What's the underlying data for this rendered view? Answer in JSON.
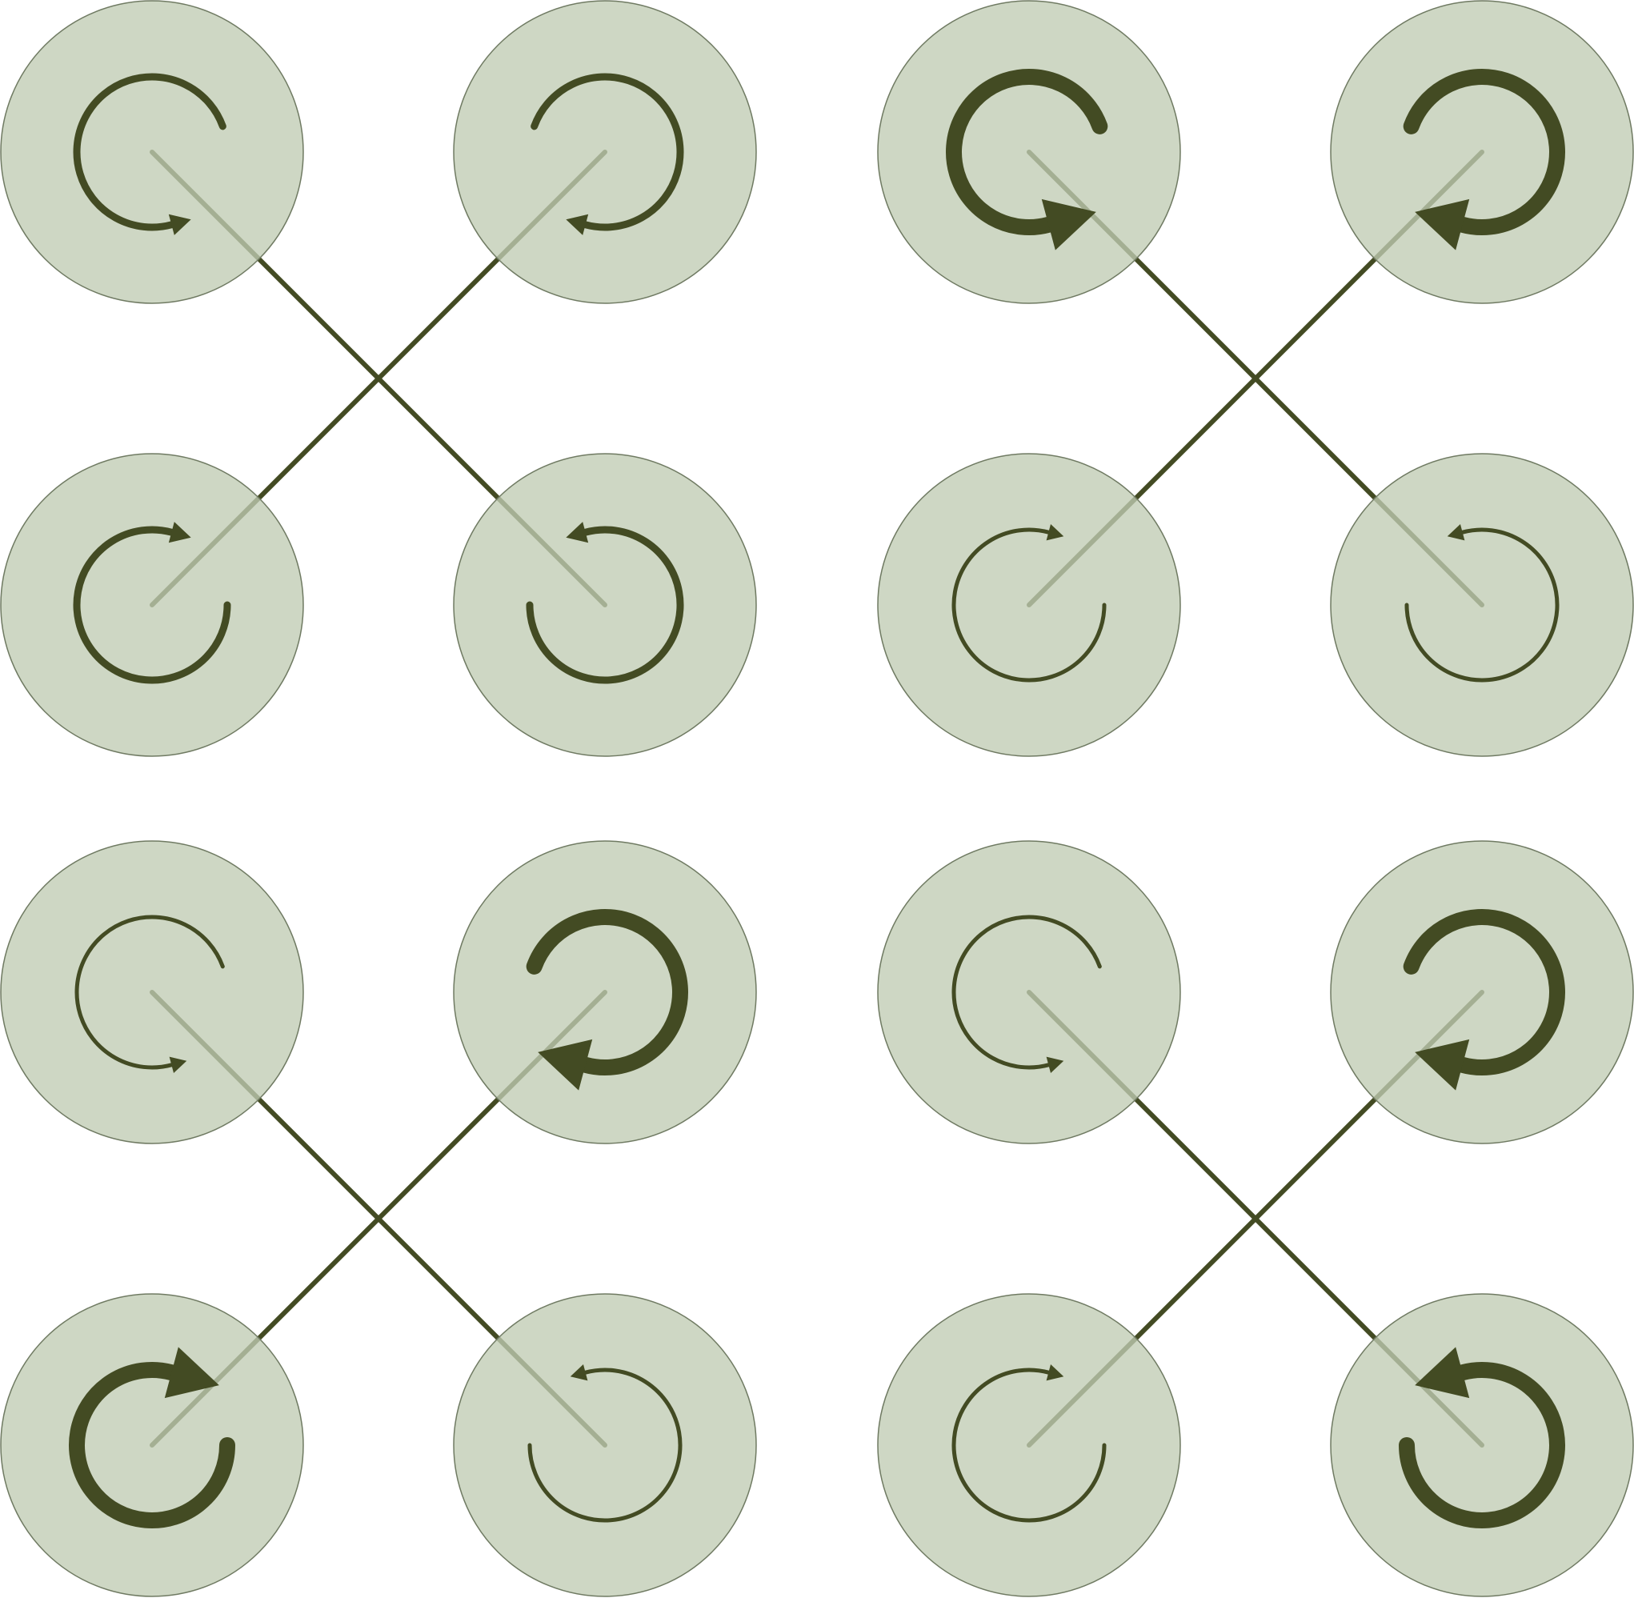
{
  "colors": {
    "background": "#ffffff",
    "disk_fill": "#c0ccb4",
    "disk_stroke": "#6f7a62",
    "arrow": "#434b23",
    "rod": "#434b23"
  },
  "panels": [
    {
      "name": "panel-top-left",
      "disks": [
        {
          "position": "top-left",
          "rotation": "counterclockwise",
          "emphasis": "medium"
        },
        {
          "position": "top-right",
          "rotation": "clockwise",
          "emphasis": "medium"
        },
        {
          "position": "bottom-left",
          "rotation": "clockwise",
          "emphasis": "medium"
        },
        {
          "position": "bottom-right",
          "rotation": "counterclockwise",
          "emphasis": "medium"
        }
      ]
    },
    {
      "name": "panel-top-right",
      "disks": [
        {
          "position": "top-left",
          "rotation": "counterclockwise",
          "emphasis": "strong"
        },
        {
          "position": "top-right",
          "rotation": "clockwise",
          "emphasis": "strong"
        },
        {
          "position": "bottom-left",
          "rotation": "clockwise",
          "emphasis": "weak"
        },
        {
          "position": "bottom-right",
          "rotation": "counterclockwise",
          "emphasis": "weak"
        }
      ]
    },
    {
      "name": "panel-bottom-left",
      "disks": [
        {
          "position": "top-left",
          "rotation": "counterclockwise",
          "emphasis": "weak"
        },
        {
          "position": "top-right",
          "rotation": "clockwise",
          "emphasis": "strong"
        },
        {
          "position": "bottom-left",
          "rotation": "clockwise",
          "emphasis": "strong"
        },
        {
          "position": "bottom-right",
          "rotation": "counterclockwise",
          "emphasis": "weak"
        }
      ]
    },
    {
      "name": "panel-bottom-right",
      "disks": [
        {
          "position": "top-left",
          "rotation": "counterclockwise",
          "emphasis": "weak"
        },
        {
          "position": "top-right",
          "rotation": "clockwise",
          "emphasis": "strong"
        },
        {
          "position": "bottom-left",
          "rotation": "clockwise",
          "emphasis": "weak"
        },
        {
          "position": "bottom-right",
          "rotation": "counterclockwise",
          "emphasis": "strong"
        }
      ]
    }
  ]
}
